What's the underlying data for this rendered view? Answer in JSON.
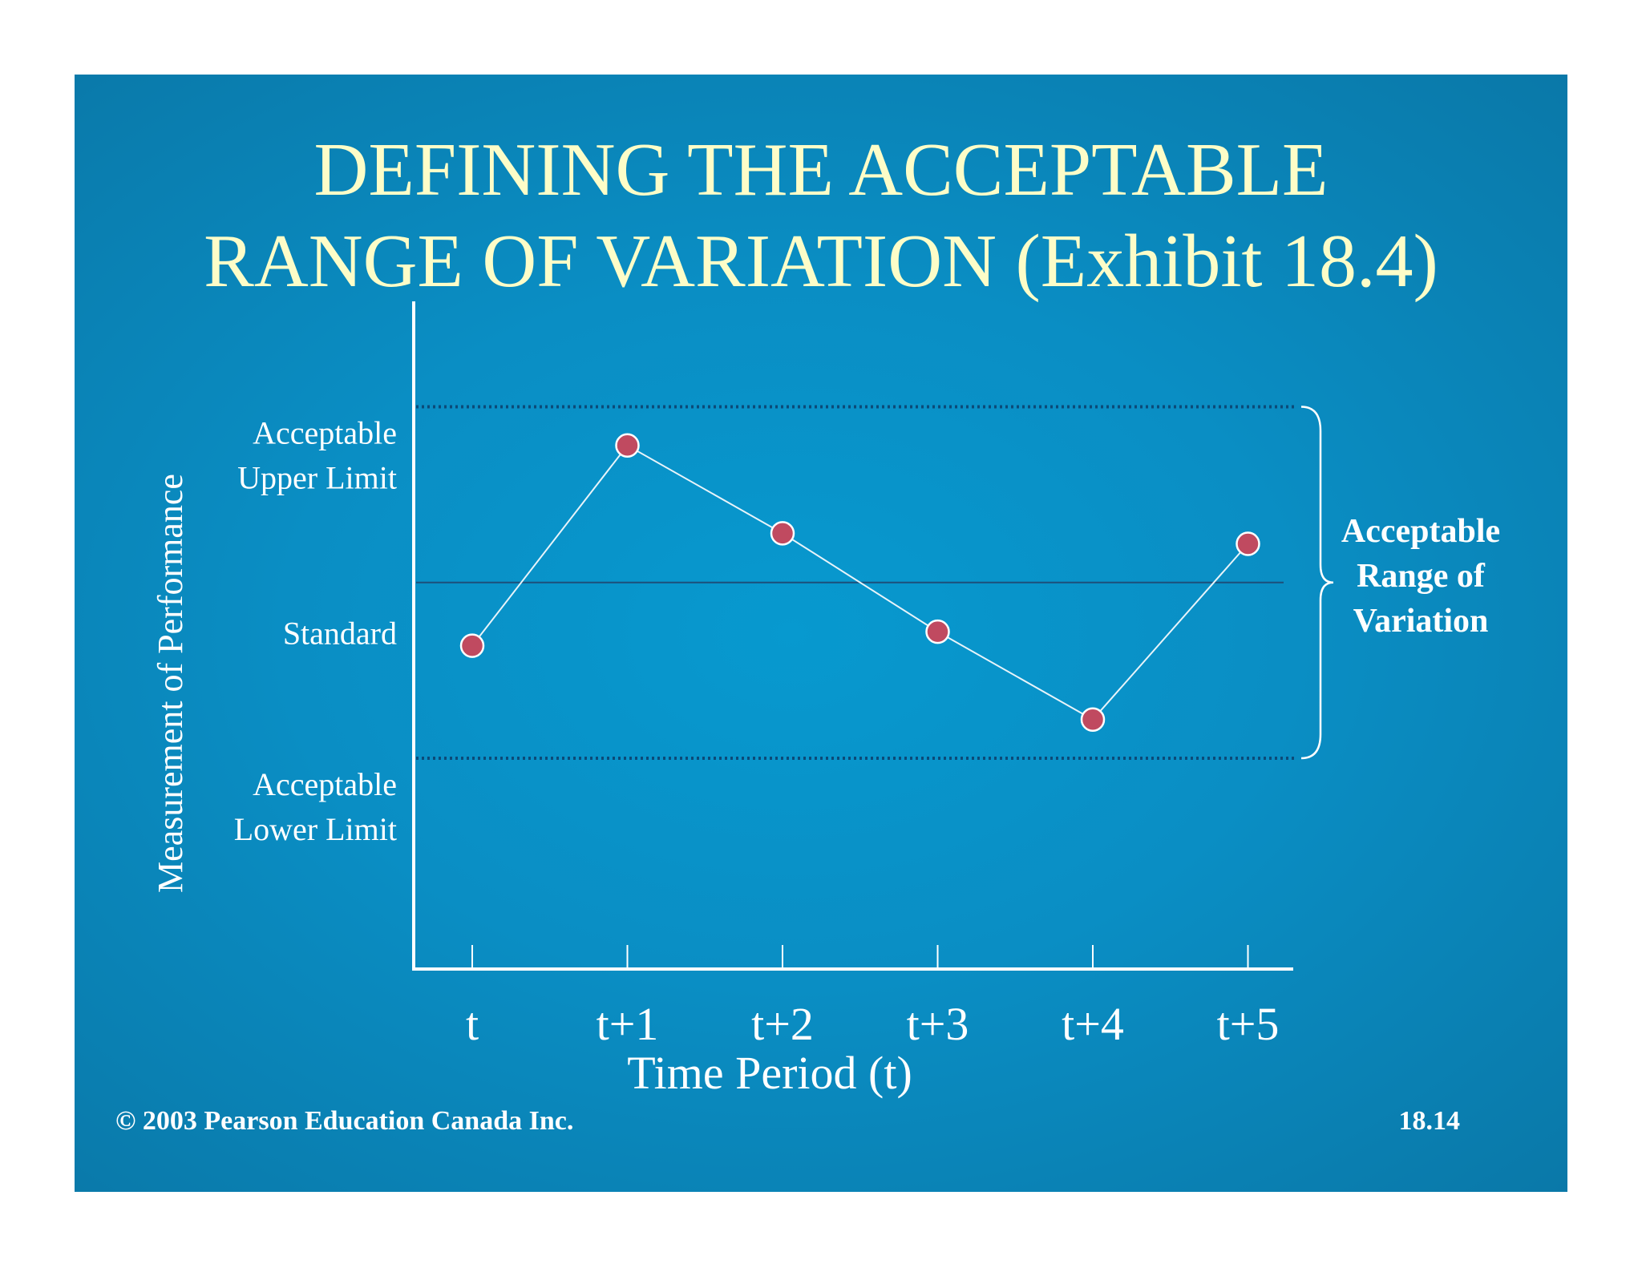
{
  "slide": {
    "title_lines": [
      "DEFINING THE ACCEPTABLE",
      "RANGE OF VARIATION (Exhibit 18.4)"
    ],
    "copyright": "©  2003 Pearson Education Canada Inc.",
    "slide_number": "18.14",
    "colors": {
      "background": "#0a8ec4",
      "title": "#fdfdc8",
      "point": "#c04a60",
      "line": "#e8f4fa",
      "standard_line": "#1d4f7a"
    }
  },
  "chart_data": {
    "type": "line",
    "title": "",
    "xlabel": "Time Period (t)",
    "ylabel": "Measurement of  Performance",
    "categories": [
      "t",
      "t+1",
      "t+2",
      "t+3",
      "t+4",
      "t+5"
    ],
    "series": [
      {
        "values": [
          -1.8,
          3.9,
          1.4,
          -1.4,
          -3.9,
          1.1
        ]
      }
    ],
    "ylim": [
      -11,
      8
    ],
    "y_levels": [
      {
        "value": 5,
        "label_lines": [
          "Acceptable",
          "Upper Limit"
        ],
        "style": "dotted"
      },
      {
        "value": 0,
        "label_lines": [
          "Standard"
        ],
        "style": "solid"
      },
      {
        "value": -5,
        "label_lines": [
          "Acceptable",
          "Lower Limit"
        ],
        "style": "dotted"
      }
    ],
    "range_annotation": {
      "label_lines": [
        "Acceptable",
        "Range of",
        "Variation"
      ],
      "from": -5,
      "to": 5
    },
    "grid": false,
    "legend": "none"
  }
}
